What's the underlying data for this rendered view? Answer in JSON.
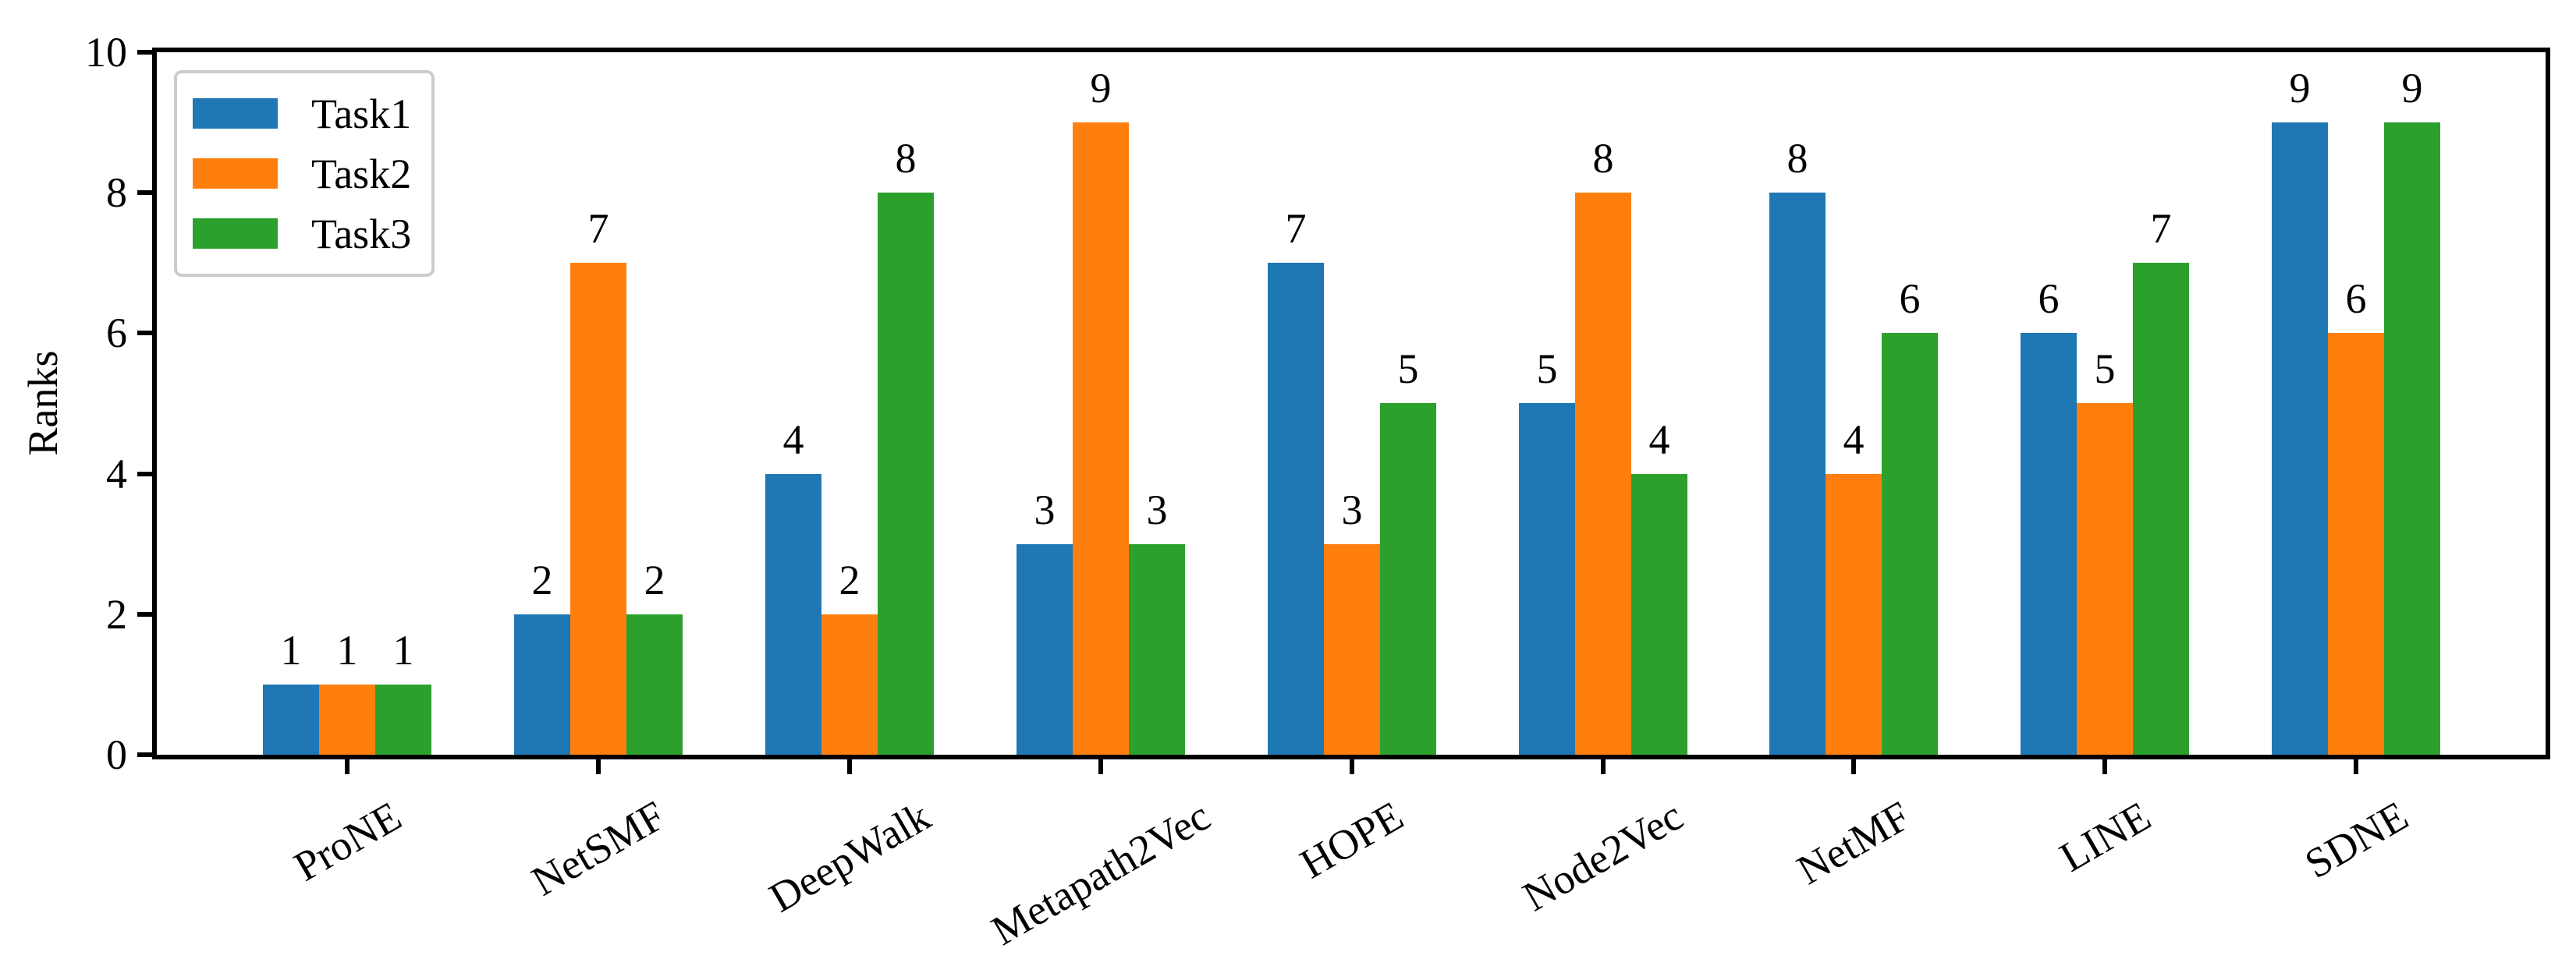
{
  "chart_data": {
    "type": "bar",
    "title": "",
    "xlabel": "",
    "ylabel": "Ranks",
    "categories": [
      "ProNE",
      "NetSMF",
      "DeepWalk",
      "Metapath2Vec",
      "HOPE",
      "Node2Vec",
      "NetMF",
      "LINE",
      "SDNE"
    ],
    "series": [
      {
        "name": "Task1",
        "color": "#1f77b4",
        "values": [
          1,
          2,
          4,
          3,
          7,
          5,
          8,
          6,
          9
        ]
      },
      {
        "name": "Task2",
        "color": "#ff7f0e",
        "values": [
          1,
          7,
          2,
          9,
          3,
          8,
          4,
          5,
          6
        ]
      },
      {
        "name": "Task3",
        "color": "#2ca02c",
        "values": [
          1,
          2,
          8,
          3,
          5,
          4,
          6,
          7,
          9
        ]
      }
    ],
    "ylim": [
      0,
      10
    ],
    "yticks": [
      0,
      2,
      4,
      6,
      8,
      10
    ],
    "bar_value_labels": true,
    "legend_position": "upper left",
    "grid": false,
    "x_tick_rotation_deg": 30,
    "axis_color": "#000000",
    "legend_border_color": "#cccccc"
  }
}
